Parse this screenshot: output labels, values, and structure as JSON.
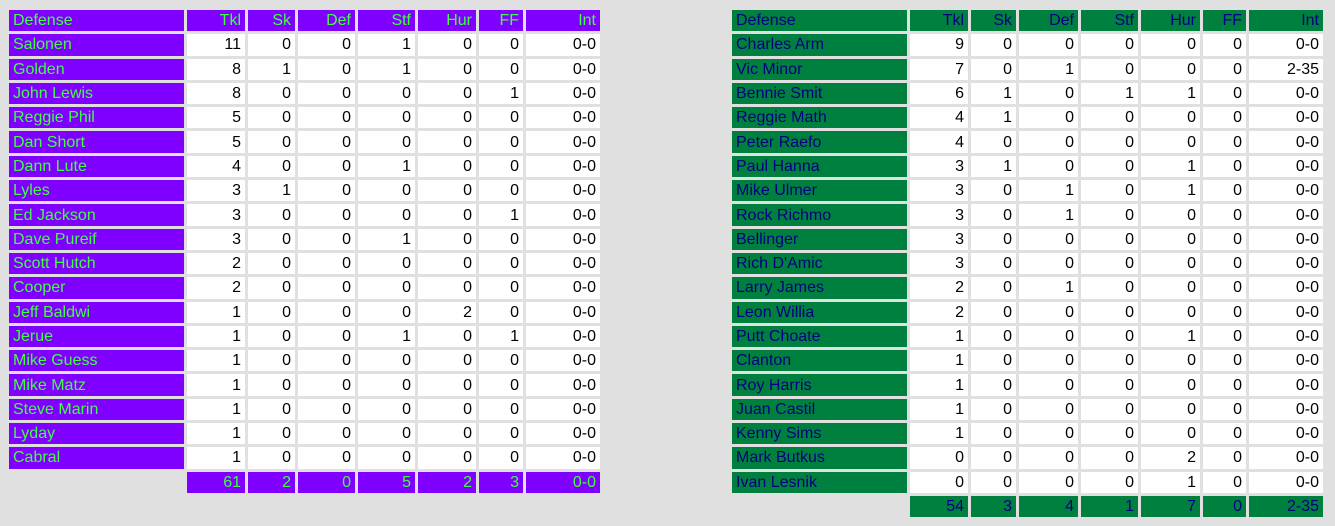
{
  "tables": [
    {
      "columns": [
        "Defense",
        "Tkl",
        "Sk",
        "Def",
        "Stf",
        "Hur",
        "FF",
        "Int"
      ],
      "rows": [
        [
          "Salonen",
          11,
          0,
          0,
          1,
          0,
          0,
          "0-0"
        ],
        [
          "Golden",
          8,
          1,
          0,
          1,
          0,
          0,
          "0-0"
        ],
        [
          "John Lewis",
          8,
          0,
          0,
          0,
          0,
          1,
          "0-0"
        ],
        [
          "Reggie Phil",
          5,
          0,
          0,
          0,
          0,
          0,
          "0-0"
        ],
        [
          "Dan Short",
          5,
          0,
          0,
          0,
          0,
          0,
          "0-0"
        ],
        [
          "Dann Lute",
          4,
          0,
          0,
          1,
          0,
          0,
          "0-0"
        ],
        [
          "Lyles",
          3,
          1,
          0,
          0,
          0,
          0,
          "0-0"
        ],
        [
          "Ed Jackson",
          3,
          0,
          0,
          0,
          0,
          1,
          "0-0"
        ],
        [
          "Dave Pureif",
          3,
          0,
          0,
          1,
          0,
          0,
          "0-0"
        ],
        [
          "Scott Hutch",
          2,
          0,
          0,
          0,
          0,
          0,
          "0-0"
        ],
        [
          "Cooper",
          2,
          0,
          0,
          0,
          0,
          0,
          "0-0"
        ],
        [
          "Jeff Baldwi",
          1,
          0,
          0,
          0,
          2,
          0,
          "0-0"
        ],
        [
          "Jerue",
          1,
          0,
          0,
          1,
          0,
          1,
          "0-0"
        ],
        [
          "Mike Guess",
          1,
          0,
          0,
          0,
          0,
          0,
          "0-0"
        ],
        [
          "Mike Matz",
          1,
          0,
          0,
          0,
          0,
          0,
          "0-0"
        ],
        [
          "Steve Marin",
          1,
          0,
          0,
          0,
          0,
          0,
          "0-0"
        ],
        [
          "Lyday",
          1,
          0,
          0,
          0,
          0,
          0,
          "0-0"
        ],
        [
          "Cabral",
          1,
          0,
          0,
          0,
          0,
          0,
          "0-0"
        ]
      ],
      "totals": [
        61,
        2,
        0,
        5,
        2,
        3,
        "0-0"
      ]
    },
    {
      "columns": [
        "Defense",
        "Tkl",
        "Sk",
        "Def",
        "Stf",
        "Hur",
        "FF",
        "Int"
      ],
      "rows": [
        [
          "Charles Arm",
          9,
          0,
          0,
          0,
          0,
          0,
          "0-0"
        ],
        [
          "Vic Minor",
          7,
          0,
          1,
          0,
          0,
          0,
          "2-35"
        ],
        [
          "Bennie Smit",
          6,
          1,
          0,
          1,
          1,
          0,
          "0-0"
        ],
        [
          "Reggie Math",
          4,
          1,
          0,
          0,
          0,
          0,
          "0-0"
        ],
        [
          "Peter Raefo",
          4,
          0,
          0,
          0,
          0,
          0,
          "0-0"
        ],
        [
          "Paul Hanna",
          3,
          1,
          0,
          0,
          1,
          0,
          "0-0"
        ],
        [
          "Mike Ulmer",
          3,
          0,
          1,
          0,
          1,
          0,
          "0-0"
        ],
        [
          "Rock Richmo",
          3,
          0,
          1,
          0,
          0,
          0,
          "0-0"
        ],
        [
          "Bellinger",
          3,
          0,
          0,
          0,
          0,
          0,
          "0-0"
        ],
        [
          "Rich D'Amic",
          3,
          0,
          0,
          0,
          0,
          0,
          "0-0"
        ],
        [
          "Larry James",
          2,
          0,
          1,
          0,
          0,
          0,
          "0-0"
        ],
        [
          "Leon Willia",
          2,
          0,
          0,
          0,
          0,
          0,
          "0-0"
        ],
        [
          "Putt Choate",
          1,
          0,
          0,
          0,
          1,
          0,
          "0-0"
        ],
        [
          "Clanton",
          1,
          0,
          0,
          0,
          0,
          0,
          "0-0"
        ],
        [
          "Roy Harris",
          1,
          0,
          0,
          0,
          0,
          0,
          "0-0"
        ],
        [
          "Juan Castil",
          1,
          0,
          0,
          0,
          0,
          0,
          "0-0"
        ],
        [
          "Kenny Sims",
          1,
          0,
          0,
          0,
          0,
          0,
          "0-0"
        ],
        [
          "Mark Butkus",
          0,
          0,
          0,
          0,
          2,
          0,
          "0-0"
        ],
        [
          "Ivan Lesnik",
          0,
          0,
          0,
          0,
          1,
          0,
          "0-0"
        ]
      ],
      "totals": [
        54,
        3,
        4,
        1,
        7,
        0,
        "2-35"
      ]
    }
  ]
}
